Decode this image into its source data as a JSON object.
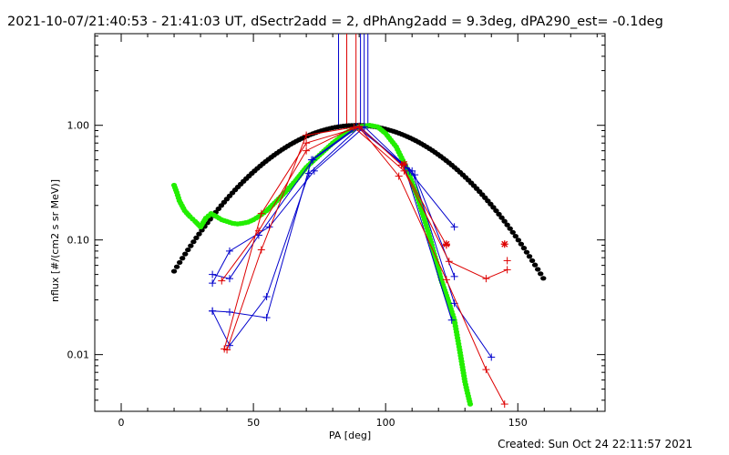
{
  "header": {
    "title": "2021-10-07/21:40:53 - 21:41:03 UT, dSectr2add = 2, dPhAng2add = 9.3deg, dPA290_est= -0.1deg"
  },
  "footer": {
    "created": "Created: Sun Oct 24 22:11:57 2021"
  },
  "chart_data": {
    "type": "scatter",
    "xlabel": "PA [deg]",
    "ylabel": "nflux [#/(cm2 s sr MeV)]",
    "xlim": [
      -10,
      183
    ],
    "ylim": [
      0.0032,
      6.3
    ],
    "yscale": "log",
    "x_ticks": [
      0,
      50,
      100,
      150
    ],
    "x_tick_labels": [
      "0",
      "50",
      "100",
      "150"
    ],
    "y_ticks": [
      0.01,
      0.1,
      1.0
    ],
    "y_tick_labels": [
      "0.01",
      "0.10",
      "1.00"
    ],
    "grid": false,
    "colors": {
      "blue": "#0000cc",
      "red": "#dd0000",
      "green": "#22ee00",
      "black": "#000000"
    },
    "vertical_lines": [
      {
        "x": 82.2,
        "color": "#0000cc"
      },
      {
        "x": 85.3,
        "color": "#dd0000"
      },
      {
        "x": 88.8,
        "color": "#dd0000"
      },
      {
        "x": 90.5,
        "color": "#0000cc"
      },
      {
        "x": 91.9,
        "color": "#0000cc"
      },
      {
        "x": 93.3,
        "color": "#0000cc"
      }
    ],
    "series": [
      {
        "color": "#0000cc",
        "points": [
          [
            34.5,
            0.05
          ],
          [
            41,
            0.046
          ],
          [
            52,
            0.11
          ],
          [
            72.5,
            0.5
          ],
          [
            90,
            0.98
          ],
          [
            109,
            0.4
          ],
          [
            126,
            0.13
          ]
        ]
      },
      {
        "color": "#0000cc",
        "points": [
          [
            34.5,
            0.042
          ],
          [
            41,
            0.08
          ],
          [
            56,
            0.13
          ],
          [
            73,
            0.4
          ],
          [
            92,
            0.97
          ],
          [
            111,
            0.37
          ],
          [
            126,
            0.048
          ]
        ]
      },
      {
        "color": "#0000cc",
        "points": [
          [
            34.5,
            0.024
          ],
          [
            41,
            0.0235
          ],
          [
            55,
            0.021
          ],
          [
            72,
            0.5
          ],
          [
            89,
            0.97
          ],
          [
            110,
            0.4
          ],
          [
            126,
            0.028
          ],
          [
            140,
            0.0095
          ]
        ]
      },
      {
        "color": "#0000cc",
        "points": [
          [
            34.5,
            0.024
          ],
          [
            41,
            0.012
          ],
          [
            55,
            0.032
          ],
          [
            71,
            0.38
          ],
          [
            90,
            0.96
          ],
          [
            107,
            0.45
          ],
          [
            125,
            0.02
          ]
        ]
      },
      {
        "color": "#dd0000",
        "points": [
          [
            38,
            0.044
          ],
          [
            52,
            0.12
          ],
          [
            70,
            0.6
          ],
          [
            88,
            0.96
          ],
          [
            107,
            0.4
          ],
          [
            124,
            0.065
          ],
          [
            138,
            0.046
          ],
          [
            146,
            0.055
          ]
        ]
      },
      {
        "color": "#dd0000",
        "points": [
          [
            40,
            0.011
          ],
          [
            53,
            0.082
          ],
          [
            70,
            0.82
          ],
          [
            90,
            0.98
          ],
          [
            106,
            0.45
          ],
          [
            123,
            0.09
          ]
        ]
      },
      {
        "color": "#dd0000",
        "points": [
          [
            39,
            0.0112
          ],
          [
            53,
            0.17
          ],
          [
            70,
            0.7
          ],
          [
            90,
            0.96
          ],
          [
            105,
            0.36
          ],
          [
            123,
            0.045
          ],
          [
            138,
            0.0074
          ],
          [
            145,
            0.0037
          ]
        ]
      }
    ],
    "asterisks": [
      {
        "x": 123,
        "y": 0.092,
        "color": "#dd0000"
      },
      {
        "x": 145,
        "y": 0.092,
        "color": "#dd0000"
      },
      {
        "x": 107,
        "y": 0.46,
        "color": "#dd0000"
      }
    ],
    "extra_plus": [
      {
        "x": 146,
        "y": 0.066,
        "color": "#dd0000"
      }
    ],
    "fit_black": {
      "type": "gaussian",
      "x_start": 20,
      "x_end": 160,
      "center": 89,
      "peak": 1.0,
      "sigma": 28.5,
      "color": "#000000"
    },
    "fit_green": {
      "color": "#22ee00",
      "points": [
        [
          20,
          0.3
        ],
        [
          21,
          0.26
        ],
        [
          22,
          0.22
        ],
        [
          24,
          0.18
        ],
        [
          26,
          0.16
        ],
        [
          28,
          0.145
        ],
        [
          30,
          0.13
        ],
        [
          32,
          0.155
        ],
        [
          34,
          0.17
        ],
        [
          36,
          0.16
        ],
        [
          38,
          0.15
        ],
        [
          40,
          0.145
        ],
        [
          42,
          0.14
        ],
        [
          44,
          0.138
        ],
        [
          46,
          0.14
        ],
        [
          48,
          0.143
        ],
        [
          50,
          0.15
        ],
        [
          52,
          0.16
        ],
        [
          55,
          0.18
        ],
        [
          58,
          0.21
        ],
        [
          62,
          0.26
        ],
        [
          66,
          0.33
        ],
        [
          70,
          0.43
        ],
        [
          75,
          0.55
        ],
        [
          80,
          0.7
        ],
        [
          85,
          0.86
        ],
        [
          90,
          0.97
        ],
        [
          94,
          1.0
        ],
        [
          97,
          0.97
        ],
        [
          100,
          0.85
        ],
        [
          104,
          0.65
        ],
        [
          108,
          0.42
        ],
        [
          112,
          0.24
        ],
        [
          116,
          0.12
        ],
        [
          119,
          0.067
        ],
        [
          121,
          0.045
        ],
        [
          124,
          0.028
        ],
        [
          126,
          0.02
        ],
        [
          128,
          0.011
        ],
        [
          130,
          0.0058
        ],
        [
          131,
          0.0046
        ],
        [
          132,
          0.0037
        ]
      ]
    }
  }
}
